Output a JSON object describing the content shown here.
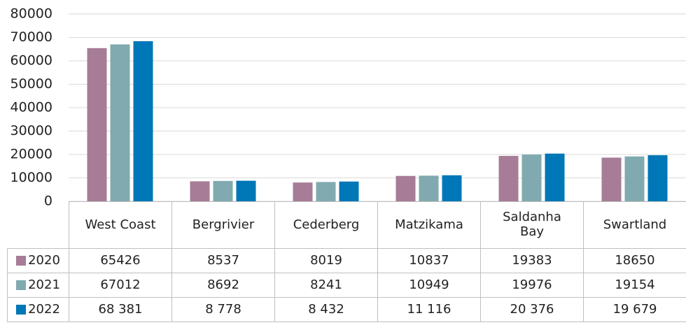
{
  "chart_data": {
    "type": "bar",
    "categories": [
      "West Coast",
      "Bergrivier",
      "Cederberg",
      "Matzikama",
      "Saldanha Bay",
      "Swartland"
    ],
    "series": [
      {
        "name": "2020",
        "color": "#a67c96",
        "values": [
          65426,
          8537,
          8019,
          10837,
          19383,
          18650
        ]
      },
      {
        "name": "2021",
        "color": "#80aab0",
        "values": [
          67012,
          8692,
          8241,
          10949,
          19976,
          19154
        ]
      },
      {
        "name": "2022",
        "color": "#0077b6",
        "values": [
          68381,
          8778,
          8432,
          11116,
          20376,
          19679
        ],
        "value_labels": [
          "68 381",
          "8 778",
          "8 432",
          "11 116",
          "20 376",
          "19 679"
        ]
      }
    ],
    "ylim": [
      0,
      80000
    ],
    "yticks": [
      0,
      10000,
      20000,
      30000,
      40000,
      50000,
      60000,
      70000,
      80000
    ],
    "grid": true,
    "legend": "table"
  }
}
